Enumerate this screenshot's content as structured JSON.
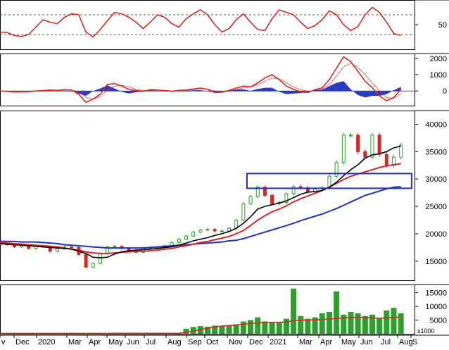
{
  "colors": {
    "price_up": "#2ca02c",
    "price_down": "#d62728",
    "ma_short": "#000000",
    "ma_mid": "#d62728",
    "ma_long": "#1f2fbf",
    "rsi": "#d62728",
    "macd_line": "#d62728",
    "macd_hist": "#1f2fbf",
    "volume_bar": "#2ca02c",
    "volume_ma": "#d62728",
    "box": "#1f2fbf",
    "grid": "#555555"
  },
  "chart_data": [
    {
      "type": "line",
      "panel": "rsi",
      "y_ticks": [
        "50"
      ],
      "ylim": [
        0,
        100
      ],
      "reference_levels": [
        70,
        30
      ],
      "x": [
        0,
        10,
        20,
        30,
        40,
        50,
        60,
        70,
        80,
        90,
        100,
        110,
        120,
        130,
        140,
        150,
        160,
        170,
        180,
        190,
        200,
        210,
        220,
        230,
        240,
        250,
        260,
        270,
        280,
        290,
        300,
        310,
        320,
        330,
        340,
        350,
        360,
        370,
        380,
        390,
        400,
        410,
        420,
        430,
        440,
        450,
        460,
        470,
        480,
        490,
        500,
        510,
        520,
        530,
        540,
        550,
        560
      ],
      "series": [
        {
          "values": [
            35,
            34,
            28,
            26,
            30,
            45,
            60,
            55,
            52,
            65,
            72,
            70,
            35,
            25,
            40,
            58,
            75,
            72,
            65,
            55,
            42,
            55,
            70,
            65,
            52,
            45,
            62,
            72,
            80,
            70,
            50,
            35,
            42,
            60,
            72,
            55,
            40,
            38,
            62,
            80,
            75,
            70,
            55,
            42,
            48,
            60,
            78,
            70,
            50,
            38,
            46,
            70,
            85,
            75,
            55,
            32,
            28
          ]
        }
      ]
    },
    {
      "type": "area",
      "panel": "macd",
      "y_ticks": [
        "2000",
        "1000",
        "0"
      ],
      "ylim": [
        -900,
        2300
      ],
      "x": [
        0,
        10,
        20,
        30,
        40,
        50,
        60,
        70,
        80,
        90,
        100,
        110,
        120,
        130,
        140,
        150,
        160,
        170,
        180,
        190,
        200,
        210,
        220,
        230,
        240,
        250,
        260,
        270,
        280,
        290,
        300,
        310,
        320,
        330,
        340,
        350,
        360,
        370,
        380,
        390,
        400,
        410,
        420,
        430,
        440,
        450,
        460,
        470,
        480,
        490,
        500,
        510,
        520,
        530,
        540,
        550,
        560
      ],
      "series": [
        {
          "name": "macd",
          "values": [
            0,
            -30,
            -60,
            -60,
            -40,
            0,
            20,
            60,
            40,
            80,
            60,
            -200,
            -700,
            -500,
            -200,
            400,
            450,
            300,
            100,
            20,
            -20,
            80,
            60,
            20,
            -20,
            40,
            60,
            120,
            180,
            100,
            -100,
            -80,
            40,
            180,
            300,
            250,
            500,
            800,
            1000,
            700,
            300,
            100,
            -50,
            -100,
            80,
            200,
            700,
            1400,
            2100,
            1800,
            1200,
            600,
            200,
            -300,
            -600,
            -400,
            100
          ]
        },
        {
          "name": "signal",
          "values": [
            0,
            -20,
            -40,
            -50,
            -45,
            -20,
            0,
            30,
            40,
            60,
            60,
            -50,
            -400,
            -500,
            -350,
            50,
            300,
            350,
            250,
            100,
            20,
            40,
            50,
            40,
            10,
            20,
            40,
            80,
            130,
            120,
            0,
            -60,
            -10,
            100,
            200,
            240,
            380,
            600,
            800,
            750,
            500,
            250,
            80,
            -30,
            20,
            120,
            400,
            900,
            1500,
            1700,
            1450,
            1000,
            500,
            0,
            -400,
            -450,
            -150
          ]
        },
        {
          "name": "histogram",
          "values": [
            0,
            -10,
            -20,
            -10,
            5,
            20,
            20,
            30,
            0,
            20,
            0,
            -150,
            -300,
            0,
            150,
            350,
            150,
            -50,
            -150,
            -80,
            -40,
            40,
            10,
            -20,
            -30,
            20,
            20,
            40,
            50,
            -20,
            -100,
            -20,
            50,
            80,
            100,
            10,
            120,
            200,
            200,
            -50,
            -200,
            -150,
            -130,
            -70,
            60,
            80,
            300,
            500,
            600,
            100,
            -250,
            -400,
            -300,
            -300,
            -200,
            50,
            250
          ]
        }
      ]
    },
    {
      "type": "line",
      "panel": "price",
      "y_ticks": [
        "40000",
        "35000",
        "30000",
        "25000",
        "20000",
        "15000"
      ],
      "ylim": [
        11500,
        42500
      ],
      "support_box": {
        "x_from": 345,
        "x_to": 575,
        "y_from": 28300,
        "y_to": 31000
      },
      "x": [
        0,
        10,
        20,
        30,
        40,
        50,
        60,
        70,
        80,
        90,
        100,
        110,
        120,
        130,
        140,
        150,
        160,
        170,
        180,
        190,
        200,
        210,
        220,
        230,
        240,
        250,
        260,
        270,
        280,
        290,
        300,
        310,
        320,
        330,
        340,
        350,
        360,
        370,
        380,
        390,
        400,
        410,
        420,
        430,
        440,
        450,
        460,
        470,
        480,
        490,
        500,
        510,
        520,
        530,
        540,
        550,
        560
      ],
      "series": [
        {
          "name": "price",
          "values": [
            18100,
            18000,
            17600,
            17900,
            17300,
            17800,
            17600,
            16800,
            17300,
            17600,
            17500,
            16200,
            13900,
            14600,
            16400,
            17600,
            17700,
            17300,
            17000,
            16600,
            17400,
            17500,
            17500,
            17800,
            18400,
            19000,
            19600,
            20300,
            20700,
            20800,
            20500,
            20500,
            21000,
            22500,
            25500,
            26800,
            28500,
            27000,
            25500,
            25700,
            27300,
            28600,
            28400,
            27700,
            28200,
            28400,
            30500,
            33000,
            38000,
            38000,
            35000,
            34000,
            38000,
            34500,
            32500,
            34000,
            36200
          ]
        },
        {
          "name": "ma_short",
          "values": [
            18200,
            18100,
            18000,
            17900,
            17800,
            17700,
            17600,
            17500,
            17400,
            17300,
            17200,
            16800,
            16400,
            15700,
            15600,
            15700,
            16300,
            16700,
            16900,
            17000,
            17100,
            17200,
            17300,
            17500,
            17600,
            17900,
            18300,
            18700,
            19000,
            19300,
            19700,
            20000,
            20400,
            21000,
            21900,
            23100,
            24500,
            25000,
            25300,
            25600,
            26000,
            26600,
            27200,
            27600,
            27700,
            27900,
            28500,
            29400,
            30600,
            31700,
            32600,
            33800,
            34400,
            34600,
            35000,
            35700,
            36000
          ]
        },
        {
          "name": "ma_mid",
          "values": [
            18400,
            18300,
            18200,
            18100,
            18000,
            17900,
            17800,
            17700,
            17600,
            17400,
            17200,
            17000,
            16700,
            16500,
            16400,
            16400,
            16500,
            16600,
            16700,
            16800,
            16800,
            16900,
            17000,
            17200,
            17300,
            17600,
            17800,
            18100,
            18400,
            18600,
            18900,
            19200,
            19500,
            20000,
            20600,
            21500,
            22500,
            23300,
            24000,
            24500,
            25100,
            25800,
            26400,
            26900,
            27400,
            27900,
            28500,
            29200,
            29900,
            30500,
            30900,
            31300,
            31700,
            32100,
            32400,
            32600,
            32800
          ]
        },
        {
          "name": "ma_long",
          "values": [
            18600,
            18600,
            18600,
            18500,
            18500,
            18500,
            18400,
            18300,
            18200,
            18000,
            17900,
            17800,
            17700,
            17600,
            17500,
            17400,
            17400,
            17400,
            17400,
            17400,
            17400,
            17500,
            17600,
            17700,
            17800,
            17900,
            18000,
            18100,
            18200,
            18300,
            18400,
            18500,
            18700,
            18800,
            19100,
            19500,
            19900,
            20300,
            20700,
            21100,
            21500,
            21900,
            22400,
            22800,
            23200,
            23600,
            24100,
            24600,
            25200,
            25800,
            26400,
            27000,
            27400,
            27800,
            28200,
            28500,
            28600
          ]
        }
      ]
    },
    {
      "type": "bar",
      "panel": "volume",
      "y_ticks": [
        "15000",
        "10000",
        "5000"
      ],
      "unit_note": "x1000",
      "ylim": [
        0,
        18000
      ],
      "x": [
        0,
        10,
        20,
        30,
        40,
        50,
        60,
        70,
        80,
        90,
        100,
        110,
        120,
        130,
        140,
        150,
        160,
        170,
        180,
        190,
        200,
        210,
        220,
        230,
        240,
        250,
        260,
        270,
        280,
        290,
        300,
        310,
        320,
        330,
        340,
        350,
        360,
        370,
        380,
        390,
        400,
        410,
        420,
        430,
        440,
        450,
        460,
        470,
        480,
        490,
        500,
        510,
        520,
        530,
        540,
        550,
        560
      ],
      "series": [
        {
          "name": "volume",
          "values": [
            150,
            150,
            160,
            140,
            150,
            160,
            140,
            150,
            150,
            160,
            150,
            160,
            180,
            170,
            160,
            170,
            180,
            170,
            160,
            180,
            170,
            180,
            190,
            200,
            200,
            300,
            1800,
            2500,
            2800,
            2600,
            3000,
            2800,
            3200,
            3500,
            4500,
            5000,
            6000,
            4500,
            4200,
            4000,
            5500,
            16500,
            6500,
            5500,
            6000,
            7500,
            8000,
            15500,
            7000,
            8000,
            7500,
            6500,
            7000,
            5500,
            8500,
            9500,
            7500
          ]
        },
        {
          "name": "volume_ma",
          "values": [
            150,
            150,
            150,
            150,
            150,
            150,
            150,
            150,
            150,
            150,
            150,
            150,
            160,
            160,
            160,
            160,
            170,
            170,
            170,
            170,
            170,
            170,
            180,
            180,
            190,
            200,
            500,
            1000,
            1500,
            2000,
            2500,
            2800,
            3000,
            3200,
            3500,
            3800,
            4000,
            4100,
            4200,
            4200,
            4300,
            4800,
            5000,
            5000,
            5100,
            5200,
            5400,
            5600,
            5800,
            6000,
            6000,
            5900,
            5800,
            5700,
            5800,
            6000,
            6100
          ]
        }
      ]
    },
    {
      "type": "line",
      "panel": "x_axis",
      "xlim": [
        0,
        580
      ],
      "tick_labels": [
        "v",
        "Dec",
        "2020",
        "Mar",
        "Apr",
        "May",
        "Jun",
        "Jul",
        "Aug",
        "Sep",
        "Oct",
        "Nov",
        "Dec",
        "2021",
        "Mar",
        "Apr",
        "May",
        "Jun",
        "Jul",
        "Aug",
        "S"
      ],
      "tick_x": [
        0,
        20,
        52,
        95,
        124,
        152,
        178,
        205,
        236,
        265,
        291,
        323,
        352,
        381,
        423,
        453,
        483,
        510,
        539,
        565,
        584
      ]
    }
  ]
}
